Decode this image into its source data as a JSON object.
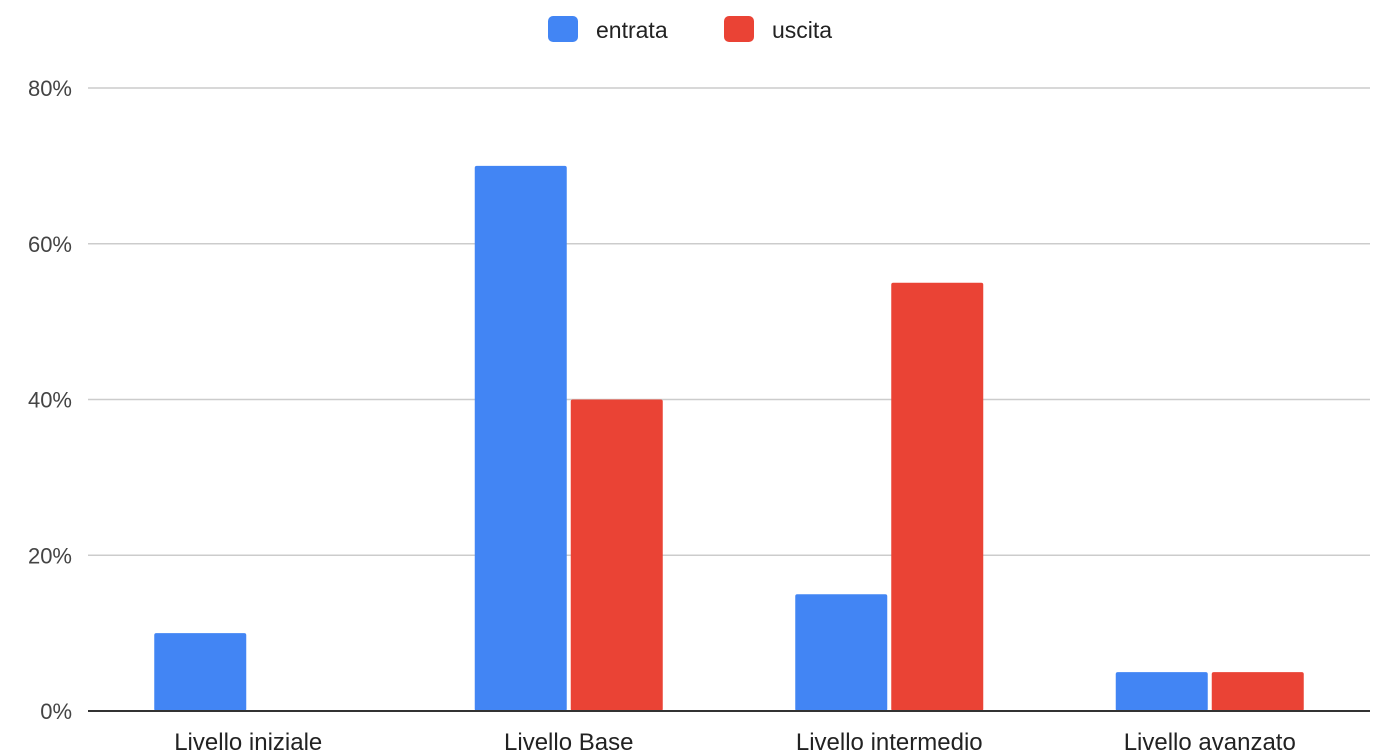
{
  "chart_data": {
    "type": "bar",
    "categories": [
      "Livello iniziale",
      "Livello Base",
      "Livello intermedio",
      "Livello avanzato"
    ],
    "series": [
      {
        "name": "entrata",
        "color": "#4285f4",
        "values": [
          10,
          70,
          15,
          5
        ]
      },
      {
        "name": "uscita",
        "color": "#ea4335",
        "values": [
          0,
          40,
          55,
          5
        ]
      }
    ],
    "ylim": [
      0,
      80
    ],
    "yticks": [
      0,
      20,
      40,
      60,
      80
    ],
    "ytick_labels": [
      "0%",
      "20%",
      "40%",
      "60%",
      "80%"
    ],
    "grid": true,
    "legend_position": "top-center",
    "title": "",
    "xlabel": "",
    "ylabel": ""
  }
}
